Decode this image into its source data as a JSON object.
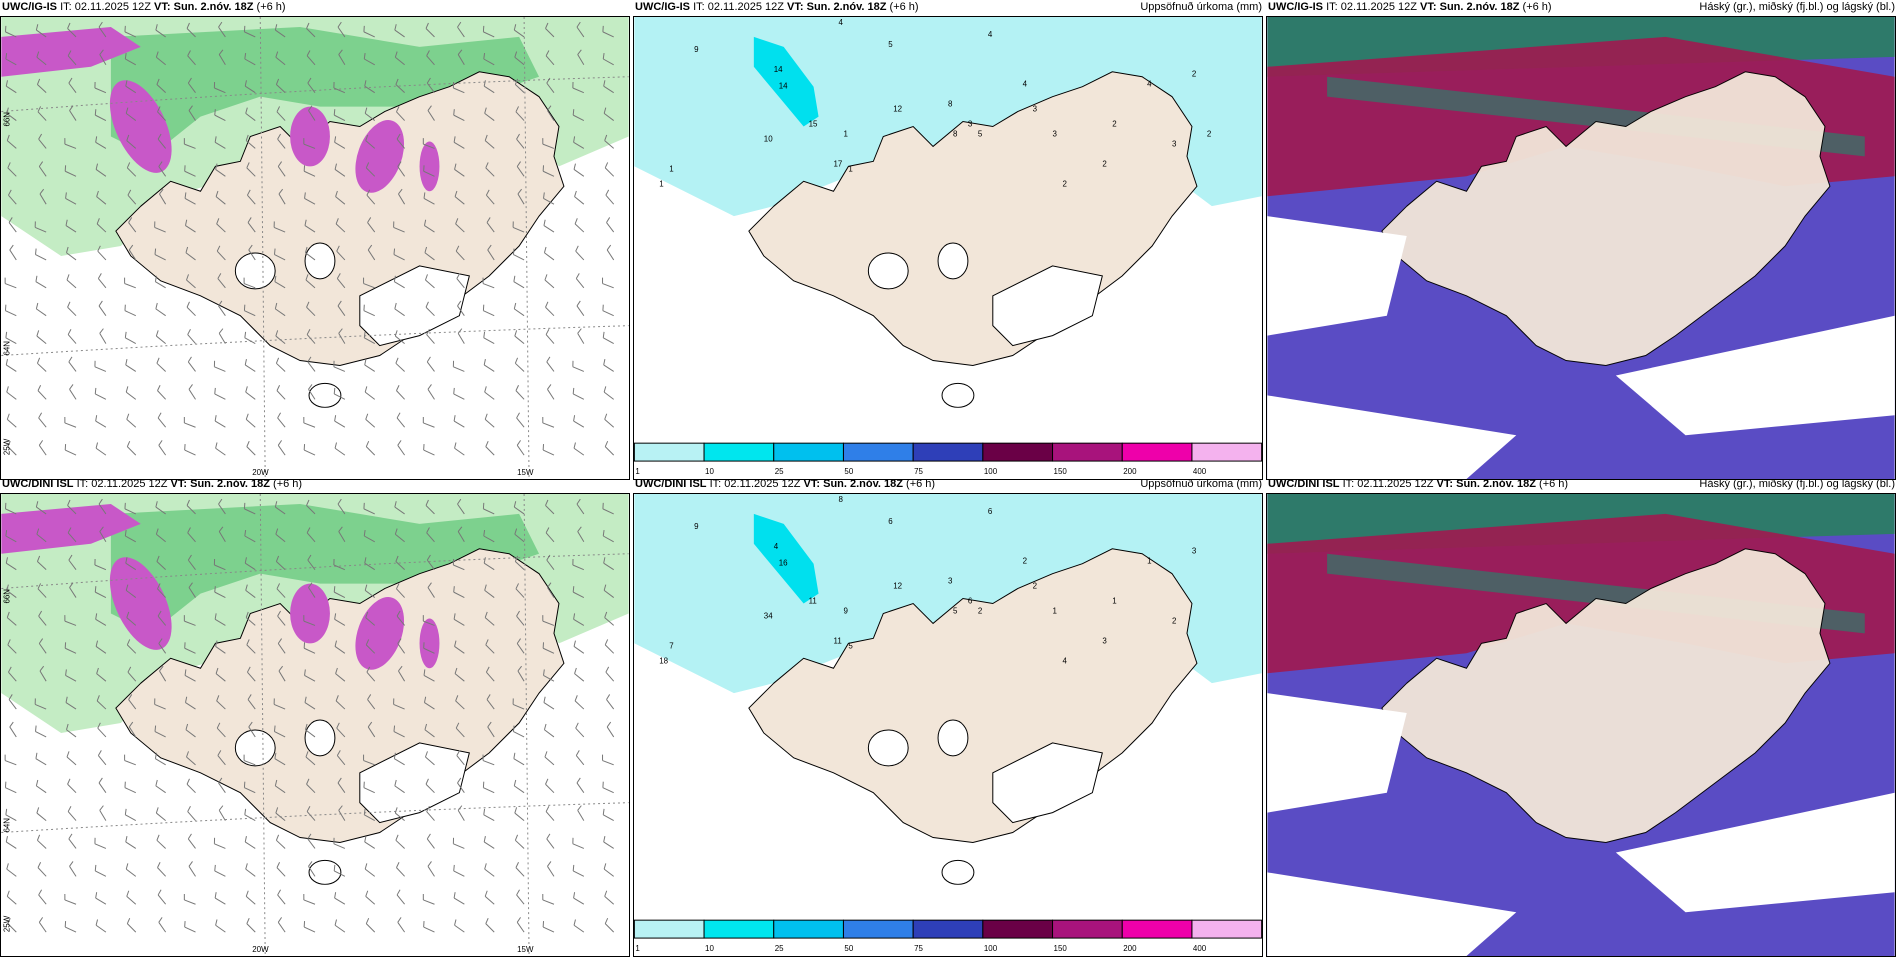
{
  "rows": [
    {
      "model": "UWC/IG-IS",
      "panels": [
        {
          "model": "UWC/IG-IS",
          "it": "IT: 02.11.2025 12Z",
          "vt_label": "VT: Sun. 2.nóv. 18Z",
          "lead": "(+6 h)",
          "right_title": ""
        },
        {
          "model": "UWC/IG-IS",
          "it": "IT: 02.11.2025 12Z",
          "vt_label": "VT: Sun. 2.nóv. 18Z",
          "lead": "(+6 h)",
          "right_title": "Uppsöfnuð úrkoma (mm)"
        },
        {
          "model": "UWC/IG-IS",
          "it": "IT: 02.11.2025 12Z",
          "vt_label": "VT: Sun. 2.nóv. 18Z",
          "lead": "(+6 h)",
          "right_title": "Háský (gr.), miðský (fj.bl.) og lágský (bl.)"
        }
      ]
    },
    {
      "model": "UWC/DINI ISL",
      "panels": [
        {
          "model": "UWC/DINI ISL",
          "it": "IT: 02.11.2025 12Z",
          "vt_label": "VT: Sun. 2.nóv. 18Z",
          "lead": "(+6 h)",
          "right_title": ""
        },
        {
          "model": "UWC/DINI ISL",
          "it": "IT: 02.11.2025 12Z",
          "vt_label": "VT: Sun. 2.nóv. 18Z",
          "lead": "(+6 h)",
          "right_title": "Uppsöfnuð úrkoma (mm)"
        },
        {
          "model": "UWC/DINI ISL",
          "it": "IT: 02.11.2025 12Z",
          "vt_label": "VT: Sun. 2.nóv. 18Z",
          "lead": "(+6 h)",
          "right_title": "Háský (gr.), miðský (fj.bl.) og lágský (bl.)"
        }
      ]
    }
  ],
  "map_labels": {
    "lon_20w": "20W",
    "lon_15w": "15W",
    "lon_25w": "25W",
    "lat_66n": "66N",
    "lat_64n": "64N"
  },
  "precip_colorbar": {
    "ticks": [
      "1",
      "10",
      "25",
      "50",
      "75",
      "100",
      "150",
      "200",
      "400"
    ],
    "colors": [
      "#b8f2f4",
      "#00e6ee",
      "#00c0ee",
      "#2f7fe8",
      "#2e3fb8",
      "#6a0046",
      "#a8137c",
      "#ee00aa",
      "#f4b2ee"
    ]
  },
  "precip_values_row1": [
    "9",
    "4",
    "5",
    "4",
    "14",
    "14",
    "15",
    "10",
    "1",
    "1",
    "1",
    "17",
    "12",
    "1",
    "3",
    "2",
    "2",
    "8",
    "8",
    "5",
    "4",
    "3",
    "3",
    "2",
    "4",
    "3",
    "2",
    "2"
  ],
  "precip_values_row2": [
    "9",
    "8",
    "6",
    "6",
    "4",
    "16",
    "11",
    "34",
    "18",
    "7",
    "5",
    "11",
    "12",
    "9",
    "6",
    "4",
    "3",
    "3",
    "5",
    "2",
    "2",
    "2",
    "1",
    "1",
    "1",
    "2",
    "3"
  ],
  "colors": {
    "land": "#f2e6d9",
    "sea_precip": "#b4f2f4",
    "precip_mid": "#00e0ee",
    "clouds_high": "#2e7a6a",
    "clouds_mid": "#a01a50",
    "clouds_low": "#5a4cc4",
    "rain_green": "#c4ecc4",
    "snow_purple": "#c858c8"
  }
}
